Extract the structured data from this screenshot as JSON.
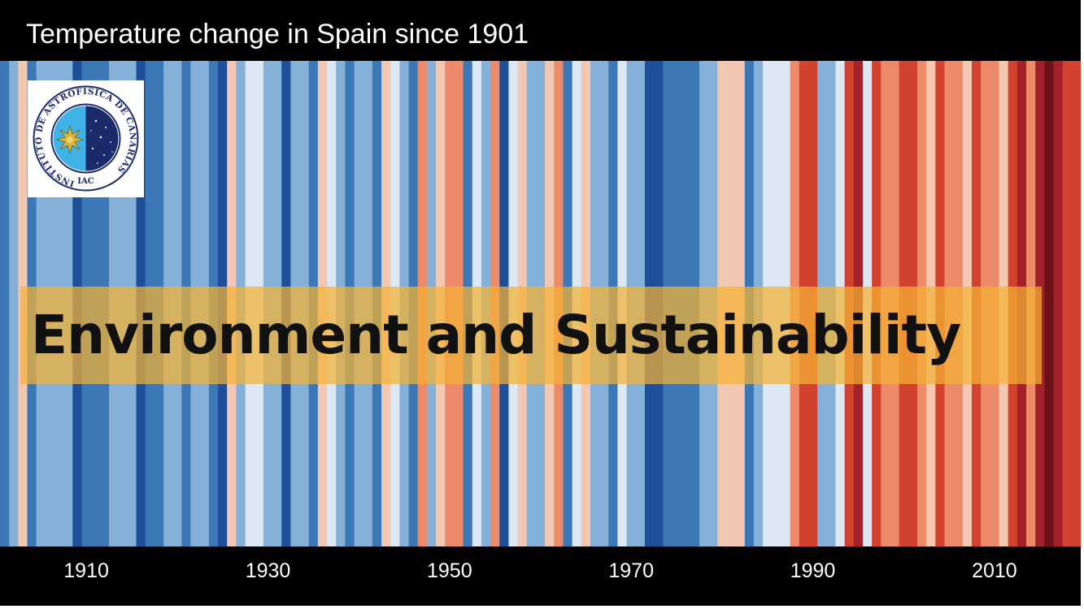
{
  "chart_data": {
    "type": "heatmap",
    "title": "Temperature change in Spain since 1901",
    "xlabel": "",
    "ylabel": "",
    "x_start": 1901,
    "x_end": 2019,
    "tick_labels": [
      "1910",
      "1930",
      "1950",
      "1970",
      "1990",
      "2010"
    ],
    "tick_years": [
      1910,
      1930,
      1950,
      1970,
      1990,
      2010
    ],
    "anomaly_scale": [
      -3,
      3
    ],
    "values": [
      -2,
      -1,
      1,
      -2,
      -1,
      -1,
      -1,
      -1,
      -3,
      -2,
      -2,
      -2,
      -1,
      -1,
      -1,
      -3,
      -2,
      -2,
      -1,
      -1,
      -2,
      -1,
      -1,
      -2,
      -3,
      1,
      -1,
      0,
      0,
      -1,
      -1,
      -3,
      -1,
      -1,
      -2,
      1,
      0,
      -1,
      -2,
      -1,
      -1,
      -2,
      1,
      0,
      -1,
      -2,
      2,
      -1,
      1,
      2,
      2,
      -2,
      0,
      -1,
      2,
      -3,
      0,
      1,
      -1,
      -1,
      1,
      2,
      -2,
      0,
      1,
      -1,
      -1,
      -2,
      0,
      -1,
      -1,
      -3,
      -3,
      -2,
      -2,
      -2,
      -2,
      -1,
      -1,
      1,
      1,
      1,
      -2,
      -1,
      0,
      0,
      0,
      2,
      3,
      3,
      -1,
      -1,
      0,
      3,
      4,
      0,
      3,
      2,
      2,
      3,
      3,
      2,
      1,
      3,
      2,
      2,
      1,
      3,
      2,
      2,
      1,
      3,
      4,
      2,
      4,
      5,
      4,
      3,
      3
    ],
    "color_scale": {
      "-3": "#1f4f99",
      "-2": "#3b78b5",
      "-1": "#85b0d7",
      "0": "#dce8f4",
      "1": "#f3c8b2",
      "2": "#ec8a69",
      "3": "#d2422f",
      "4": "#a3212a",
      "5": "#6b1118"
    }
  },
  "logo": {
    "ring_text": "INSTITUTO DE ASTROFISICA DE CANARIAS",
    "center_text": "IAC",
    "colors": {
      "ring": "#1b2a6b",
      "sky_day": "#3fb2e6",
      "sky_night": "#1b2a6b",
      "sun": "#d9b23a"
    }
  },
  "banner": {
    "text": "Environment and Sustainability",
    "color": "#f4b134"
  }
}
